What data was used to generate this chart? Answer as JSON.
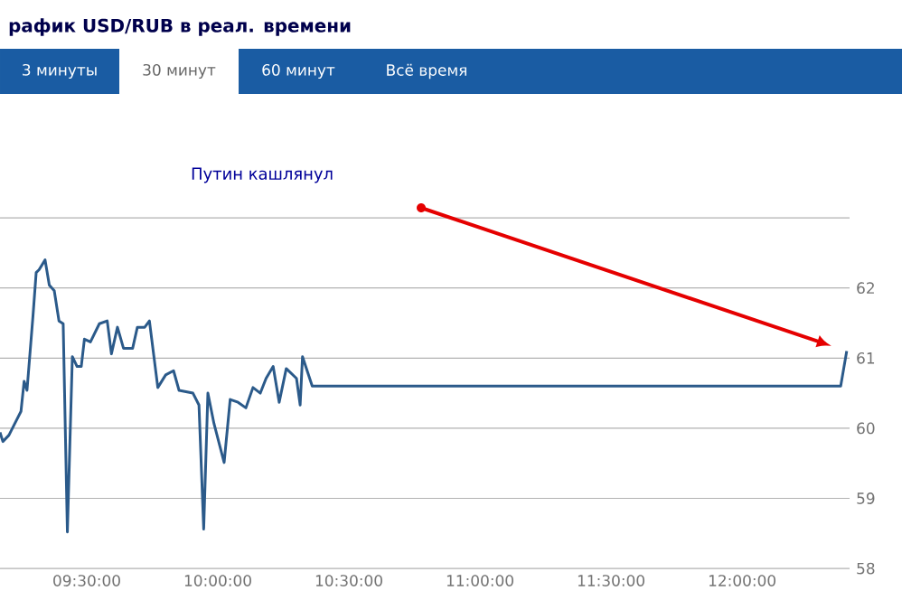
{
  "chart_data": {
    "type": "line",
    "title": "рафик USD/RUB в реал. времени",
    "annotations": [
      "Путин кашлянул",
      "3 минуты",
      "30 минут",
      "60 минут",
      "Всё время"
    ],
    "x": [
      9.169,
      9.18,
      9.203,
      9.226,
      9.249,
      9.261,
      9.272,
      9.295,
      9.307,
      9.318,
      9.341,
      9.357,
      9.376,
      9.394,
      9.41,
      9.426,
      9.445,
      9.463,
      9.479,
      9.491,
      9.514,
      9.548,
      9.578,
      9.594,
      9.617,
      9.64,
      9.675,
      9.693,
      9.721,
      9.739,
      9.771,
      9.801,
      9.831,
      9.852,
      9.905,
      9.928,
      9.946,
      9.962,
      9.985,
      10.024,
      10.047,
      10.077,
      10.107,
      10.134,
      10.162,
      10.184,
      10.211,
      10.234,
      10.261,
      10.3,
      10.314,
      10.323,
      10.36,
      12.376,
      12.399
    ],
    "series": [
      {
        "color": "#2b5a8a",
        "values": [
          59.94,
          59.81,
          59.9,
          60.07,
          60.24,
          60.67,
          60.54,
          61.61,
          62.22,
          62.26,
          62.4,
          62.04,
          61.96,
          61.53,
          61.49,
          58.52,
          61.02,
          60.88,
          60.88,
          61.27,
          61.23,
          61.49,
          61.53,
          61.06,
          61.44,
          61.14,
          61.14,
          61.44,
          61.44,
          61.53,
          60.58,
          60.76,
          60.82,
          60.54,
          60.5,
          60.33,
          58.56,
          60.5,
          60.07,
          59.51,
          60.41,
          60.37,
          60.29,
          60.58,
          60.5,
          60.71,
          60.88,
          60.37,
          60.85,
          60.71,
          60.33,
          61.02,
          60.6,
          60.6,
          61.1
        ]
      }
    ],
    "xlim": [
      9.169,
      12.41
    ],
    "xticks": [
      {
        "value": 9.5,
        "label": "09:30:00"
      },
      {
        "value": 10,
        "label": "10:00:00"
      },
      {
        "value": 10.5,
        "label": "10:30:00"
      },
      {
        "value": 11,
        "label": "11:00:00"
      },
      {
        "value": 11.5,
        "label": "11:30:00"
      },
      {
        "value": 12,
        "label": "12:00:00"
      }
    ],
    "ylim": [
      58,
      63
    ],
    "yticks": [
      58,
      59,
      60,
      61,
      62,
      {
        "value": 63,
        "label": null
      }
    ],
    "grid": "y",
    "marker": "none",
    "line_style": "solid"
  }
}
